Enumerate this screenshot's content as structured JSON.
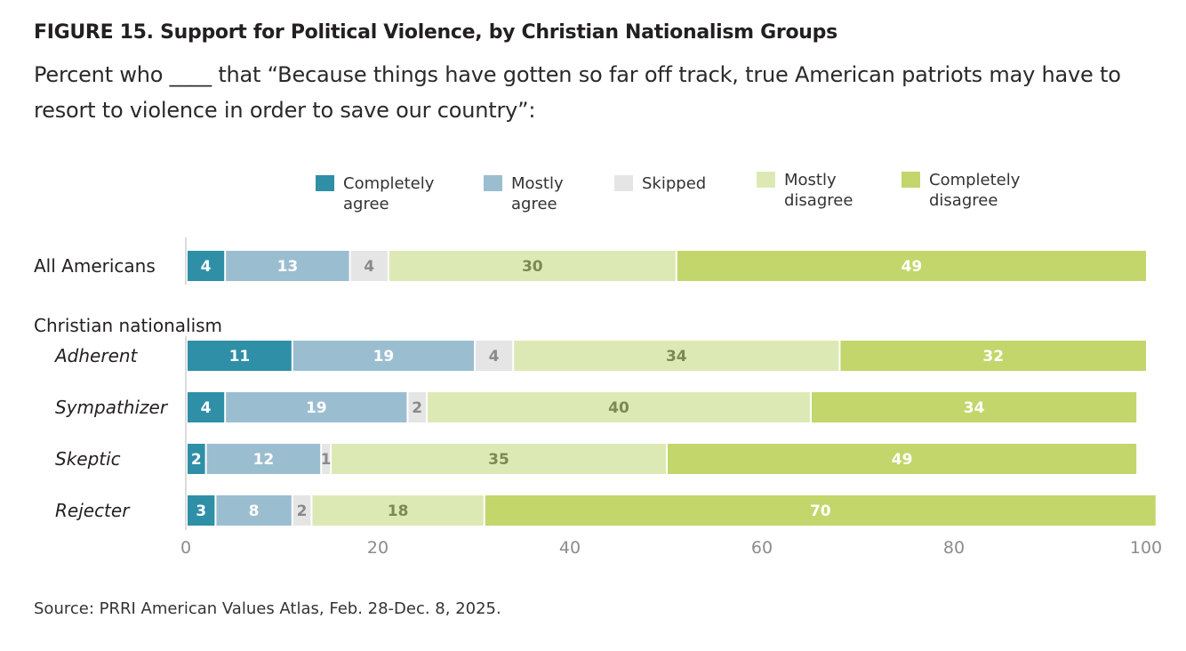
{
  "title": "FIGURE 15.  Support for Political Violence, by Christian Nationalism Groups",
  "subtitle": "Percent who ____ that “Because things have gotten so far off track, true American patriots may have to resort to violence in order to save our country”:",
  "source": "Source: PRRI American Values Atlas, Feb. 28-Dec. 8, 2025.",
  "chart_data": {
    "type": "bar",
    "orientation": "horizontal",
    "stacked": true,
    "group_label": "Christian nationalism",
    "categories": [
      "All Americans",
      "Adherent",
      "Sympathizer",
      "Skeptic",
      "Rejecter"
    ],
    "series": [
      {
        "name": "Completely\nagree",
        "color": "#2e8fa6",
        "label_color": "#ffffff",
        "values": [
          4,
          11,
          4,
          2,
          3
        ]
      },
      {
        "name": "Mostly\nagree",
        "color": "#9bbdd0",
        "label_color": "#ffffff",
        "values": [
          13,
          19,
          19,
          12,
          8
        ]
      },
      {
        "name": "Skipped",
        "color": "#e5e5e5",
        "label_color": "#8a8a8a",
        "values": [
          4,
          4,
          2,
          1,
          2
        ]
      },
      {
        "name": "Mostly\ndisagree",
        "color": "#dde9b5",
        "label_color": "#7a8a52",
        "values": [
          30,
          34,
          40,
          35,
          18
        ]
      },
      {
        "name": "Completely\ndisagree",
        "color": "#c3d66b",
        "label_color": "#ffffff",
        "values": [
          49,
          32,
          34,
          49,
          70
        ]
      }
    ],
    "xlim": [
      0,
      100
    ],
    "xticks": [
      0,
      20,
      40,
      60,
      80,
      100
    ],
    "grid": false,
    "legend_position": "top"
  }
}
